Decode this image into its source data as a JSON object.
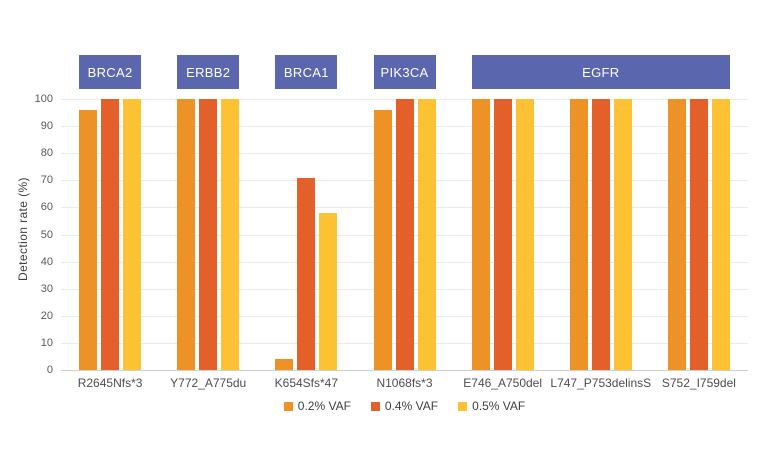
{
  "chart_data": {
    "type": "bar",
    "title": "",
    "ylabel": "Detection rate (%)",
    "xlabel": "",
    "ylim": [
      0,
      100
    ],
    "yticks": [
      0,
      10,
      20,
      30,
      40,
      50,
      60,
      70,
      80,
      90,
      100
    ],
    "grid": true,
    "legend_position": "bottom",
    "categories": [
      "R2645Nfs*3",
      "Y772_A775du",
      "K654Sfs*47",
      "N1068fs*3",
      "E746_A750del",
      "L747_P753delinsS",
      "S752_I759del"
    ],
    "gene_groups": [
      {
        "label": "BRCA2",
        "start": 0,
        "span": 1
      },
      {
        "label": "ERBB2",
        "start": 1,
        "span": 1
      },
      {
        "label": "BRCA1",
        "start": 2,
        "span": 1
      },
      {
        "label": "PIK3CA",
        "start": 3,
        "span": 1
      },
      {
        "label": "EGFR",
        "start": 4,
        "span": 3
      }
    ],
    "series": [
      {
        "name": "0.2% VAF",
        "color": "#ED9227",
        "values": [
          96,
          100,
          4,
          96,
          100,
          100,
          100
        ]
      },
      {
        "name": "0.4% VAF",
        "color": "#E4602A",
        "values": [
          100,
          100,
          71,
          100,
          100,
          100,
          100
        ]
      },
      {
        "name": "0.5% VAF",
        "color": "#FCC233",
        "values": [
          100,
          100,
          58,
          100,
          100,
          100,
          100
        ]
      }
    ],
    "colors": {
      "gene_box": "#5a67af",
      "gene_box_text": "#ffffff",
      "gridline": "#eaeaea",
      "axis_line": "#cfcfcf",
      "tick_text": "#595959",
      "label_text": "#4d4d4d"
    }
  }
}
